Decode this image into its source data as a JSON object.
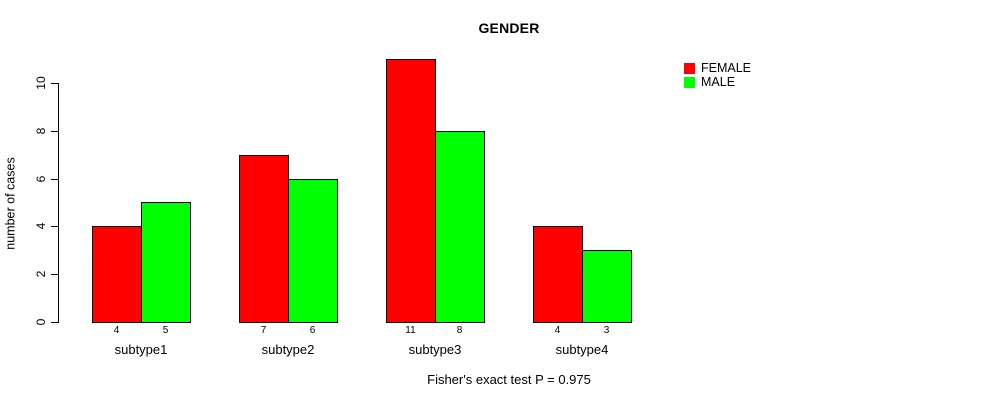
{
  "chart_data": {
    "type": "bar",
    "title": "GENDER",
    "ylabel": "number of cases",
    "xlabel": "",
    "categories": [
      "subtype1",
      "subtype2",
      "subtype3",
      "subtype4"
    ],
    "series": [
      {
        "name": "FEMALE",
        "color": "#ff0000",
        "values": [
          4,
          7,
          11,
          4
        ]
      },
      {
        "name": "MALE",
        "color": "#00ff00",
        "values": [
          5,
          6,
          8,
          3
        ]
      }
    ],
    "ylim": [
      0,
      10
    ],
    "yticks": [
      0,
      2,
      4,
      6,
      8,
      10
    ],
    "bar_value_labels_shown": true,
    "grid": false,
    "legend_position": "top-right",
    "annotation": "Fisher's exact test P = 0.975"
  },
  "colors": {
    "background": "#ffffff",
    "axis": "#000000",
    "text": "#000000",
    "female": "#ff0000",
    "male": "#00ff00"
  }
}
